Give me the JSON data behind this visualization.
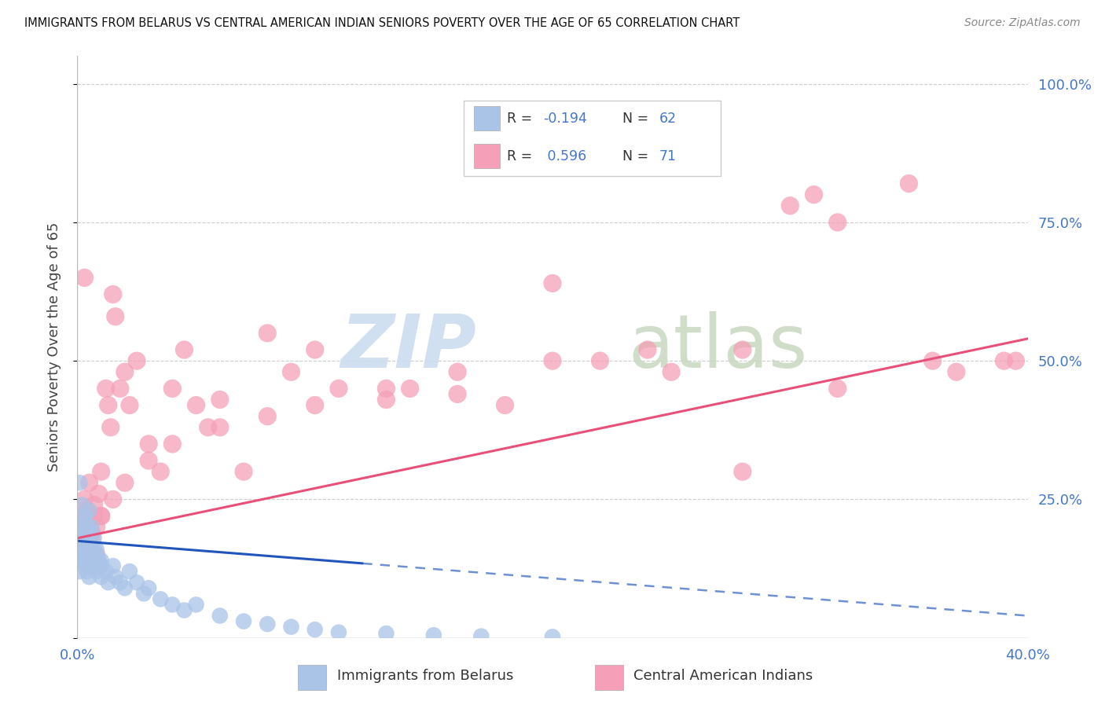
{
  "title": "IMMIGRANTS FROM BELARUS VS CENTRAL AMERICAN INDIAN SENIORS POVERTY OVER THE AGE OF 65 CORRELATION CHART",
  "source": "Source: ZipAtlas.com",
  "ylabel": "Seniors Poverty Over the Age of 65",
  "xlim": [
    0.0,
    0.4
  ],
  "ylim": [
    0.0,
    1.05
  ],
  "color_belarus": "#aac4e8",
  "color_caindian": "#f5a0b8",
  "line_color_belarus": "#2255bb",
  "line_color_caindian": "#e8507a",
  "watermark_zip_color": "#ccddf0",
  "watermark_atlas_color": "#c8d8c0",
  "belarus_pts": [
    [
      0.001,
      0.18
    ],
    [
      0.001,
      0.15
    ],
    [
      0.001,
      0.12
    ],
    [
      0.001,
      0.2
    ],
    [
      0.002,
      0.16
    ],
    [
      0.002,
      0.19
    ],
    [
      0.002,
      0.14
    ],
    [
      0.002,
      0.17
    ],
    [
      0.003,
      0.13
    ],
    [
      0.003,
      0.21
    ],
    [
      0.003,
      0.15
    ],
    [
      0.003,
      0.18
    ],
    [
      0.004,
      0.16
    ],
    [
      0.004,
      0.12
    ],
    [
      0.004,
      0.2
    ],
    [
      0.005,
      0.14
    ],
    [
      0.005,
      0.17
    ],
    [
      0.005,
      0.11
    ],
    [
      0.006,
      0.15
    ],
    [
      0.006,
      0.13
    ],
    [
      0.006,
      0.19
    ],
    [
      0.007,
      0.16
    ],
    [
      0.007,
      0.14
    ],
    [
      0.008,
      0.12
    ],
    [
      0.008,
      0.15
    ],
    [
      0.009,
      0.13
    ],
    [
      0.01,
      0.11
    ],
    [
      0.01,
      0.14
    ],
    [
      0.012,
      0.12
    ],
    [
      0.013,
      0.1
    ],
    [
      0.015,
      0.13
    ],
    [
      0.016,
      0.11
    ],
    [
      0.018,
      0.1
    ],
    [
      0.02,
      0.09
    ],
    [
      0.022,
      0.12
    ],
    [
      0.025,
      0.1
    ],
    [
      0.028,
      0.08
    ],
    [
      0.03,
      0.09
    ],
    [
      0.035,
      0.07
    ],
    [
      0.04,
      0.06
    ],
    [
      0.045,
      0.05
    ],
    [
      0.05,
      0.06
    ],
    [
      0.06,
      0.04
    ],
    [
      0.07,
      0.03
    ],
    [
      0.08,
      0.025
    ],
    [
      0.09,
      0.02
    ],
    [
      0.1,
      0.015
    ],
    [
      0.11,
      0.01
    ],
    [
      0.13,
      0.008
    ],
    [
      0.15,
      0.005
    ],
    [
      0.17,
      0.003
    ],
    [
      0.2,
      0.002
    ],
    [
      0.001,
      0.28
    ],
    [
      0.002,
      0.24
    ],
    [
      0.003,
      0.22
    ],
    [
      0.004,
      0.19
    ],
    [
      0.005,
      0.23
    ],
    [
      0.006,
      0.2
    ],
    [
      0.007,
      0.18
    ],
    [
      0.008,
      0.16
    ],
    [
      0.009,
      0.14
    ],
    [
      0.01,
      0.13
    ]
  ],
  "caindian_pts": [
    [
      0.001,
      0.2
    ],
    [
      0.002,
      0.22
    ],
    [
      0.002,
      0.18
    ],
    [
      0.003,
      0.25
    ],
    [
      0.003,
      0.2
    ],
    [
      0.004,
      0.23
    ],
    [
      0.005,
      0.21
    ],
    [
      0.005,
      0.28
    ],
    [
      0.006,
      0.19
    ],
    [
      0.007,
      0.24
    ],
    [
      0.007,
      0.22
    ],
    [
      0.008,
      0.2
    ],
    [
      0.009,
      0.26
    ],
    [
      0.01,
      0.22
    ],
    [
      0.01,
      0.3
    ],
    [
      0.012,
      0.45
    ],
    [
      0.013,
      0.42
    ],
    [
      0.014,
      0.38
    ],
    [
      0.015,
      0.62
    ],
    [
      0.016,
      0.58
    ],
    [
      0.018,
      0.45
    ],
    [
      0.02,
      0.48
    ],
    [
      0.022,
      0.42
    ],
    [
      0.025,
      0.5
    ],
    [
      0.03,
      0.35
    ],
    [
      0.035,
      0.3
    ],
    [
      0.04,
      0.45
    ],
    [
      0.045,
      0.52
    ],
    [
      0.05,
      0.42
    ],
    [
      0.055,
      0.38
    ],
    [
      0.06,
      0.43
    ],
    [
      0.07,
      0.3
    ],
    [
      0.08,
      0.55
    ],
    [
      0.09,
      0.48
    ],
    [
      0.1,
      0.52
    ],
    [
      0.11,
      0.45
    ],
    [
      0.13,
      0.43
    ],
    [
      0.14,
      0.45
    ],
    [
      0.16,
      0.44
    ],
    [
      0.18,
      0.42
    ],
    [
      0.2,
      0.64
    ],
    [
      0.22,
      0.5
    ],
    [
      0.25,
      0.48
    ],
    [
      0.28,
      0.52
    ],
    [
      0.3,
      0.78
    ],
    [
      0.31,
      0.8
    ],
    [
      0.32,
      0.75
    ],
    [
      0.35,
      0.82
    ],
    [
      0.37,
      0.48
    ],
    [
      0.39,
      0.5
    ],
    [
      0.002,
      0.17
    ],
    [
      0.004,
      0.2
    ],
    [
      0.006,
      0.18
    ],
    [
      0.008,
      0.15
    ],
    [
      0.01,
      0.22
    ],
    [
      0.015,
      0.25
    ],
    [
      0.02,
      0.28
    ],
    [
      0.03,
      0.32
    ],
    [
      0.04,
      0.35
    ],
    [
      0.06,
      0.38
    ],
    [
      0.08,
      0.4
    ],
    [
      0.1,
      0.42
    ],
    [
      0.13,
      0.45
    ],
    [
      0.16,
      0.48
    ],
    [
      0.2,
      0.5
    ],
    [
      0.24,
      0.52
    ],
    [
      0.28,
      0.3
    ],
    [
      0.32,
      0.45
    ],
    [
      0.36,
      0.5
    ],
    [
      0.395,
      0.5
    ],
    [
      0.003,
      0.65
    ]
  ],
  "belarus_line": {
    "x0": 0.0,
    "x1": 0.4,
    "y0_pct": 0.175,
    "y1_pct": 0.04
  },
  "caindian_line": {
    "x0": 0.0,
    "x1": 0.4,
    "y0_pct": 0.18,
    "y1_pct": 0.54
  }
}
